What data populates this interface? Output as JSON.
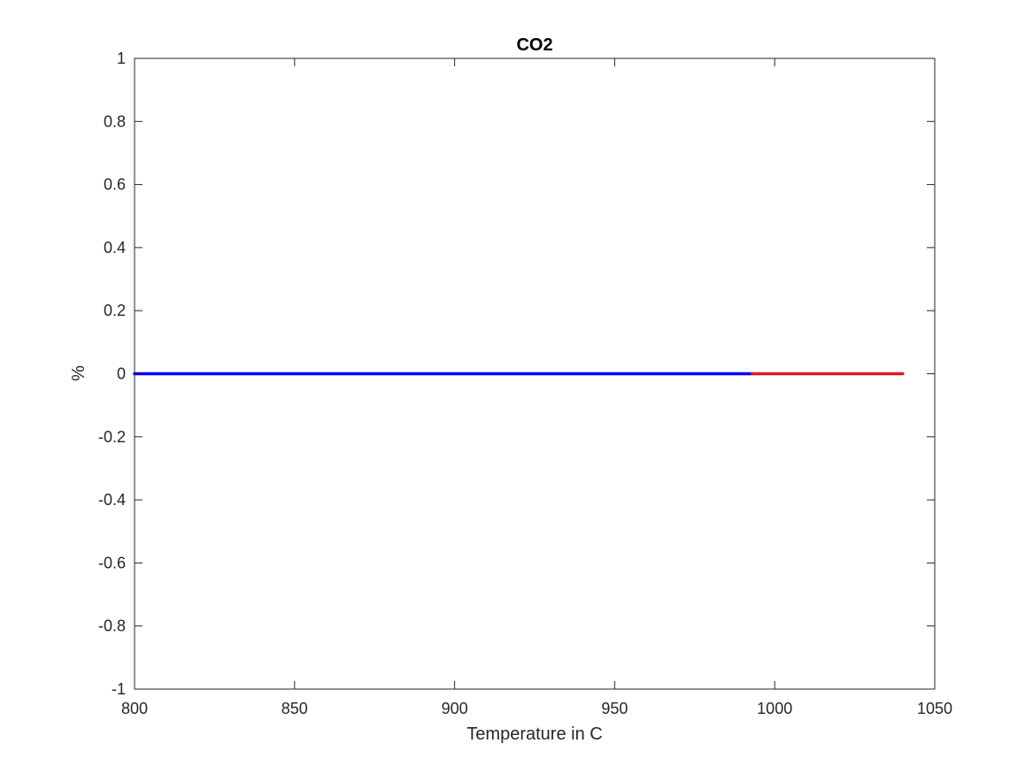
{
  "chart_data": {
    "type": "line",
    "title": "CO2",
    "xlabel": "Temperature in C",
    "ylabel": "%",
    "xlim": [
      800,
      1050
    ],
    "ylim": [
      -1,
      1
    ],
    "xticks": [
      800,
      850,
      900,
      950,
      1000,
      1050
    ],
    "xtick_labels": [
      "800",
      "850",
      "900",
      "950",
      "1000",
      "1050"
    ],
    "yticks": [
      -1,
      -0.8,
      -0.6,
      -0.4,
      -0.2,
      0,
      0.2,
      0.4,
      0.6,
      0.8,
      1
    ],
    "ytick_labels": [
      "-1",
      "-0.8",
      "-0.6",
      "-0.4",
      "-0.2",
      "0",
      "0.2",
      "0.4",
      "0.6",
      "0.8",
      "1"
    ],
    "grid": false,
    "box": true,
    "series": [
      {
        "color": "#0000ff",
        "x": [
          800,
          993
        ],
        "y": [
          0,
          0
        ]
      },
      {
        "color": "#e41a1c",
        "x": [
          993,
          1040
        ],
        "y": [
          0,
          0
        ]
      }
    ]
  }
}
